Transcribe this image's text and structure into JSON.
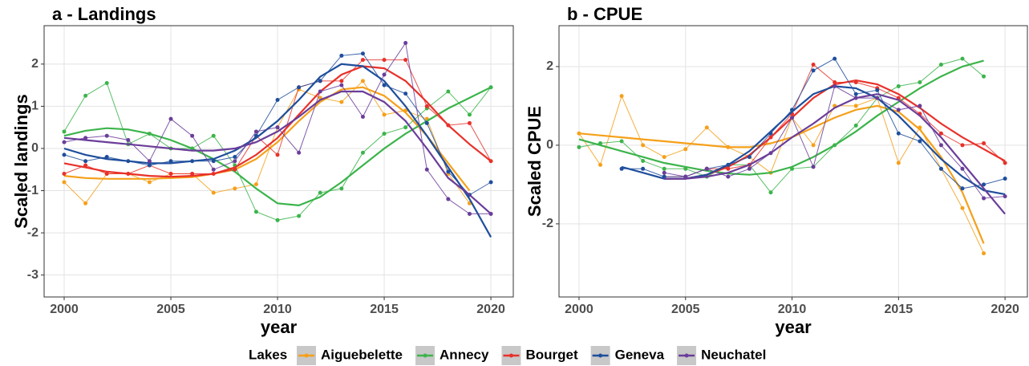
{
  "chart_data": [
    {
      "type": "line",
      "title": "a - Landings",
      "xlabel": "year",
      "ylabel": "Scaled landings",
      "x": [
        2000,
        2001,
        2002,
        2003,
        2004,
        2005,
        2006,
        2007,
        2008,
        2009,
        2010,
        2011,
        2012,
        2013,
        2014,
        2015,
        2016,
        2017,
        2018,
        2019,
        2020
      ],
      "xlim": [
        1999.06,
        2021.05
      ],
      "xticks": [
        2000,
        2005,
        2010,
        2015,
        2020
      ],
      "ylim": [
        -3.52,
        2.91
      ],
      "yticks": [
        -3,
        -2,
        -1,
        0,
        1,
        2
      ],
      "grid": true,
      "series": [
        {
          "name": "Aiguebelette",
          "color": "#f5a01a",
          "values": [
            -0.8,
            -1.3,
            -0.6,
            -0.6,
            -0.8,
            -0.6,
            -0.6,
            -1.05,
            -0.95,
            -0.85,
            0.5,
            1.4,
            1.2,
            1.1,
            1.6,
            0.8,
            0.9,
            0.7,
            -0.6,
            -1.3,
            null
          ],
          "fit": [
            -0.65,
            -0.7,
            -0.72,
            -0.72,
            -0.72,
            -0.7,
            -0.68,
            -0.6,
            -0.5,
            -0.25,
            0.15,
            0.65,
            1.1,
            1.4,
            1.45,
            1.25,
            0.85,
            0.3,
            -0.35,
            -1.0,
            null
          ]
        },
        {
          "name": "Annecy",
          "color": "#3cb44b",
          "values": [
            0.4,
            1.25,
            1.55,
            0.1,
            0.35,
            0.0,
            0.0,
            0.3,
            -0.4,
            -1.5,
            -1.7,
            -1.6,
            -1.05,
            -0.95,
            -0.1,
            0.35,
            0.5,
            0.95,
            1.35,
            0.8,
            1.45
          ],
          "fit": [
            0.3,
            0.42,
            0.48,
            0.45,
            0.35,
            0.2,
            0.0,
            -0.25,
            -0.55,
            -0.95,
            -1.3,
            -1.35,
            -1.15,
            -0.8,
            -0.4,
            0.0,
            0.35,
            0.65,
            0.95,
            1.2,
            1.45
          ]
        },
        {
          "name": "Bourget",
          "color": "#e8312a",
          "values": [
            -0.6,
            -0.4,
            -0.6,
            -0.6,
            -0.4,
            -0.6,
            -0.6,
            -0.6,
            -0.5,
            0.3,
            -0.15,
            1.45,
            1.6,
            1.6,
            2.1,
            2.1,
            2.1,
            1.0,
            0.55,
            0.6,
            -0.3
          ],
          "fit": [
            -0.35,
            -0.45,
            -0.55,
            -0.6,
            -0.65,
            -0.67,
            -0.65,
            -0.6,
            -0.45,
            -0.15,
            0.25,
            0.8,
            1.35,
            1.75,
            1.95,
            1.9,
            1.6,
            1.1,
            0.55,
            0.1,
            -0.3
          ]
        },
        {
          "name": "Geneva",
          "color": "#1f4e9c",
          "values": [
            -0.15,
            -0.3,
            -0.2,
            -0.3,
            -0.4,
            -0.3,
            -0.3,
            -0.3,
            -0.2,
            0.3,
            1.15,
            1.45,
            1.6,
            2.2,
            2.25,
            1.5,
            1.3,
            0.6,
            -0.55,
            -1.1,
            -0.8
          ],
          "fit": [
            0.0,
            -0.15,
            -0.25,
            -0.3,
            -0.35,
            -0.35,
            -0.3,
            -0.25,
            -0.05,
            0.25,
            0.65,
            1.15,
            1.7,
            2.0,
            1.95,
            1.6,
            1.0,
            0.3,
            -0.45,
            -1.2,
            -2.1
          ]
        },
        {
          "name": "Neuchatel",
          "color": "#6a3d9a",
          "values": [
            0.15,
            0.25,
            0.3,
            0.2,
            -0.3,
            0.7,
            0.3,
            -0.5,
            -0.3,
            0.4,
            0.5,
            -0.1,
            1.35,
            1.5,
            0.75,
            1.75,
            2.5,
            -0.5,
            -1.2,
            -1.55,
            -1.55
          ],
          "fit": [
            0.25,
            0.2,
            0.15,
            0.1,
            0.05,
            0.0,
            -0.05,
            -0.05,
            0.0,
            0.15,
            0.4,
            0.75,
            1.15,
            1.35,
            1.35,
            1.1,
            0.65,
            0.0,
            -0.7,
            -1.1,
            -1.55
          ]
        }
      ],
      "legend_title": "Lakes",
      "legend": "bottom"
    },
    {
      "type": "line",
      "title": "b - CPUE",
      "xlabel": "year",
      "ylabel": "Scaled CPUE",
      "x": [
        2000,
        2001,
        2002,
        2003,
        2004,
        2005,
        2006,
        2007,
        2008,
        2009,
        2010,
        2011,
        2012,
        2013,
        2014,
        2015,
        2016,
        2017,
        2018,
        2019,
        2020
      ],
      "xlim": [
        1999.06,
        2021.05
      ],
      "xticks": [
        2000,
        2005,
        2010,
        2015,
        2020
      ],
      "ylim": [
        -3.86,
        3.04
      ],
      "yticks": [
        -2,
        0,
        2
      ],
      "grid": true,
      "series": [
        {
          "color": "#f5a01a",
          "values": [
            0.3,
            -0.5,
            1.25,
            0.0,
            -0.3,
            -0.1,
            0.45,
            -0.05,
            -0.3,
            -0.7,
            0.7,
            0.0,
            1.0,
            1.0,
            1.2,
            -0.45,
            0.45,
            -0.6,
            -1.6,
            -2.75,
            null
          ],
          "fit": [
            0.3,
            0.25,
            0.2,
            0.15,
            0.1,
            0.05,
            0.0,
            -0.05,
            -0.05,
            0.05,
            0.2,
            0.45,
            0.7,
            0.9,
            1.0,
            0.85,
            0.4,
            -0.3,
            -1.2,
            -2.5,
            null
          ]
        },
        {
          "color": "#3cb44b",
          "values": [
            -0.05,
            0.05,
            0.1,
            -0.4,
            -0.6,
            -0.6,
            -0.8,
            -0.5,
            -0.5,
            -1.2,
            -0.6,
            -0.55,
            0.0,
            0.5,
            1.2,
            1.5,
            1.6,
            2.05,
            2.2,
            1.75,
            null
          ],
          "fit": [
            0.15,
            0.0,
            -0.15,
            -0.3,
            -0.45,
            -0.55,
            -0.65,
            -0.72,
            -0.75,
            -0.7,
            -0.55,
            -0.3,
            0.0,
            0.35,
            0.75,
            1.1,
            1.45,
            1.75,
            2.0,
            2.15,
            null
          ]
        },
        {
          "color": "#e8312a",
          "values": [
            null,
            null,
            null,
            null,
            -0.8,
            -0.8,
            -0.6,
            -0.6,
            -0.5,
            0.2,
            0.8,
            2.05,
            1.6,
            1.6,
            1.45,
            1.2,
            0.8,
            0.3,
            0.0,
            0.05,
            -0.45
          ],
          "fit": [
            null,
            null,
            null,
            null,
            -0.85,
            -0.85,
            -0.75,
            -0.55,
            -0.25,
            0.2,
            0.7,
            1.2,
            1.55,
            1.65,
            1.55,
            1.3,
            0.95,
            0.55,
            0.2,
            -0.1,
            -0.4
          ]
        },
        {
          "color": "#1f4e9c",
          "values": [
            null,
            null,
            -0.6,
            -0.6,
            -0.8,
            -0.8,
            -0.6,
            -0.5,
            -0.3,
            0.3,
            0.9,
            1.9,
            2.2,
            1.3,
            1.4,
            0.3,
            0.1,
            -0.6,
            -1.1,
            -1.0,
            -0.85
          ],
          "fit": [
            null,
            null,
            -0.55,
            -0.7,
            -0.85,
            -0.85,
            -0.75,
            -0.5,
            -0.15,
            0.35,
            0.85,
            1.3,
            1.5,
            1.45,
            1.2,
            0.75,
            0.2,
            -0.35,
            -0.8,
            -1.15,
            -1.25
          ]
        },
        {
          "color": "#6a3d9a",
          "values": [
            null,
            null,
            null,
            null,
            -0.7,
            -0.8,
            -0.6,
            -0.8,
            -0.6,
            -0.2,
            0.7,
            -0.55,
            1.5,
            1.2,
            1.2,
            0.9,
            1.0,
            0.0,
            -0.6,
            -1.35,
            -1.3
          ],
          "fit": [
            null,
            null,
            null,
            null,
            -0.85,
            -0.85,
            -0.8,
            -0.7,
            -0.5,
            -0.2,
            0.2,
            0.55,
            0.95,
            1.2,
            1.3,
            1.15,
            0.75,
            0.2,
            -0.45,
            -1.1,
            -1.75
          ]
        }
      ]
    }
  ]
}
